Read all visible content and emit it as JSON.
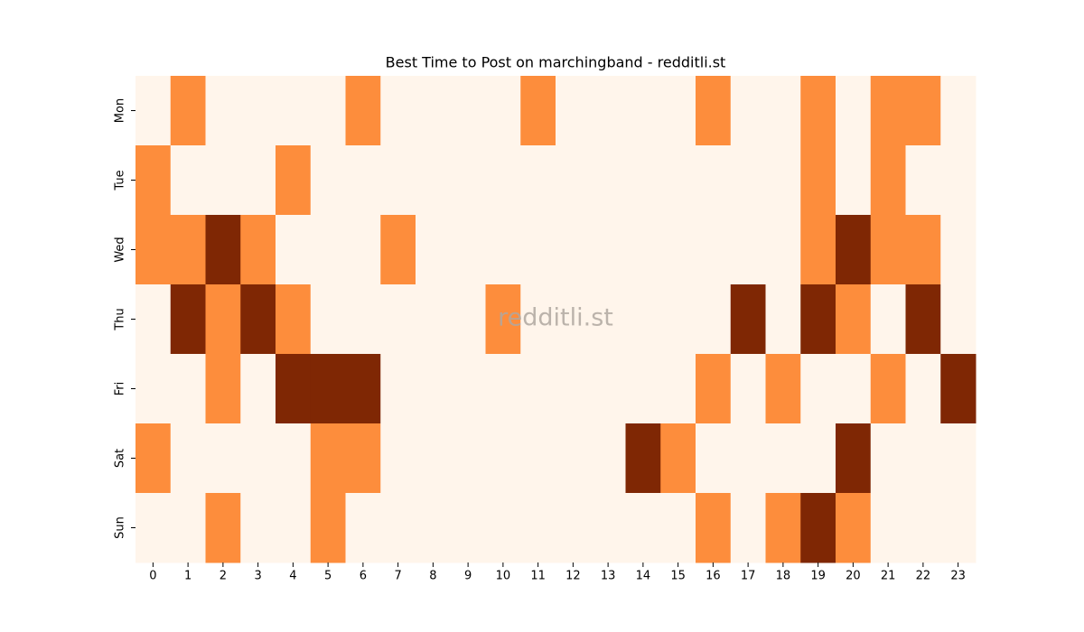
{
  "chart_data": {
    "type": "heatmap",
    "title": "Best Time to Post on marchingband - redditli.st",
    "watermark": "redditli.st",
    "categories": [
      0,
      1,
      2,
      3,
      4,
      5,
      6,
      7,
      8,
      9,
      10,
      11,
      12,
      13,
      14,
      15,
      16,
      17,
      18,
      19,
      20,
      21,
      22,
      23
    ],
    "rows": [
      "Mon",
      "Tue",
      "Wed",
      "Thu",
      "Fri",
      "Sat",
      "Sun"
    ],
    "palette": [
      "#fff5eb",
      "#fd8d3c",
      "#7f2704"
    ],
    "values": [
      [
        0,
        1,
        0,
        0,
        0,
        0,
        1,
        0,
        0,
        0,
        0,
        1,
        0,
        0,
        0,
        0,
        1,
        0,
        0,
        1,
        0,
        1,
        1,
        0
      ],
      [
        1,
        0,
        0,
        0,
        1,
        0,
        0,
        0,
        0,
        0,
        0,
        0,
        0,
        0,
        0,
        0,
        0,
        0,
        0,
        1,
        0,
        1,
        0,
        0
      ],
      [
        1,
        1,
        2,
        1,
        0,
        0,
        0,
        1,
        0,
        0,
        0,
        0,
        0,
        0,
        0,
        0,
        0,
        0,
        0,
        1,
        2,
        1,
        1,
        0
      ],
      [
        0,
        2,
        1,
        2,
        1,
        0,
        0,
        0,
        0,
        0,
        1,
        0,
        0,
        0,
        0,
        0,
        0,
        2,
        0,
        2,
        1,
        0,
        2,
        0
      ],
      [
        0,
        0,
        1,
        0,
        2,
        2,
        2,
        0,
        0,
        0,
        0,
        0,
        0,
        0,
        0,
        0,
        1,
        0,
        1,
        0,
        0,
        1,
        0,
        2
      ],
      [
        1,
        0,
        0,
        0,
        0,
        1,
        1,
        0,
        0,
        0,
        0,
        0,
        0,
        0,
        2,
        1,
        0,
        0,
        0,
        0,
        2,
        0,
        0,
        0
      ],
      [
        0,
        0,
        1,
        0,
        0,
        1,
        0,
        0,
        0,
        0,
        0,
        0,
        0,
        0,
        0,
        0,
        1,
        0,
        1,
        2,
        1,
        0,
        0,
        0
      ]
    ]
  }
}
